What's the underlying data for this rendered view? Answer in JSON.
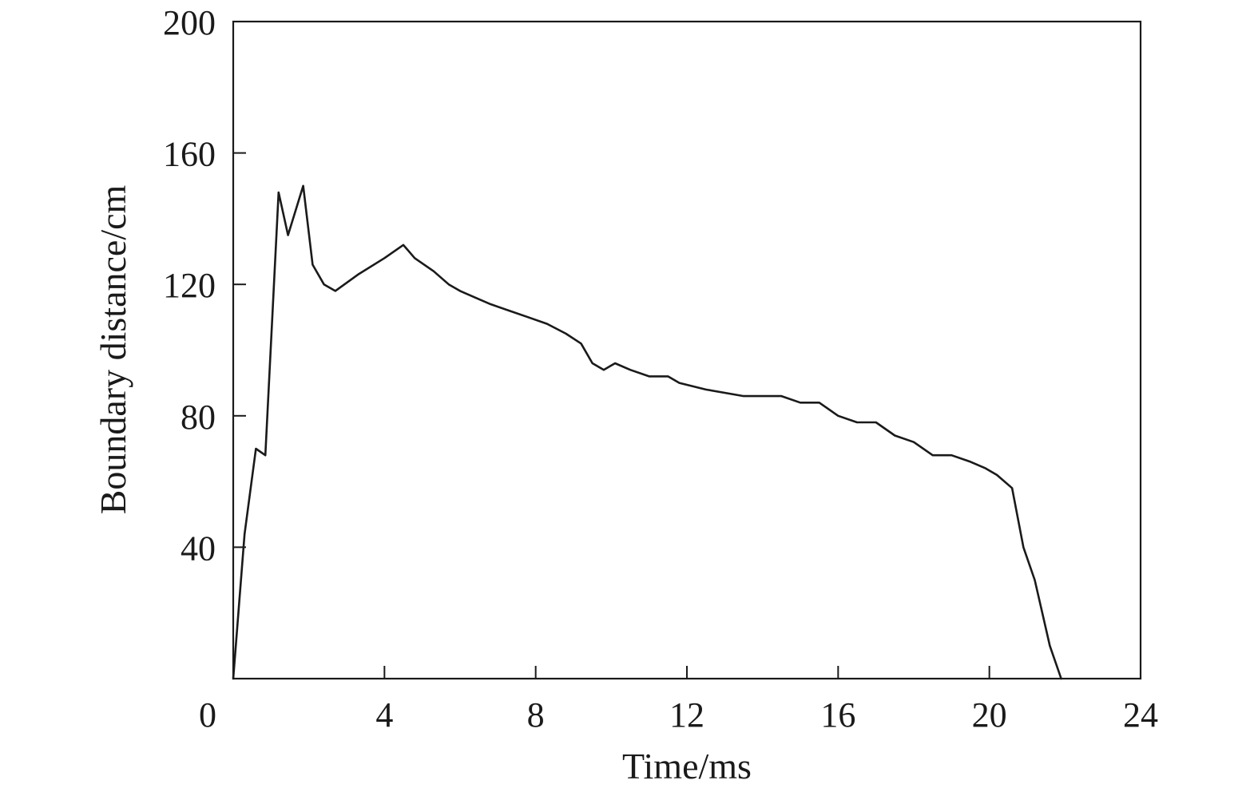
{
  "chart_data": {
    "type": "line",
    "title": "",
    "xlabel": "Time/ms",
    "ylabel": "Boundary distance/cm",
    "xlim": [
      0,
      24
    ],
    "ylim": [
      0,
      200
    ],
    "x_ticks": [
      0,
      4,
      8,
      12,
      16,
      20,
      24
    ],
    "x_tick_labels": [
      "0",
      "4",
      "8",
      "12",
      "16",
      "20",
      "24"
    ],
    "y_ticks": [
      40,
      80,
      120,
      160,
      200
    ],
    "y_tick_labels": [
      "40",
      "80",
      "120",
      "160",
      "200"
    ],
    "grid": false,
    "legend": "none",
    "line_color": "#1a1a1a",
    "series": [
      {
        "x": [
          0,
          0.3,
          0.6,
          0.85,
          1.2,
          1.45,
          1.85,
          2.1,
          2.4,
          2.7,
          3.3,
          4.0,
          4.5,
          4.8,
          5.3,
          5.7,
          6.0,
          6.4,
          6.8,
          7.3,
          7.8,
          8.3,
          8.8,
          9.2,
          9.5,
          9.8,
          10.1,
          10.5,
          11.0,
          11.5,
          11.8,
          12.5,
          13.5,
          14.0,
          14.5,
          15.0,
          15.5,
          16.0,
          16.5,
          17.0,
          17.5,
          18.0,
          18.5,
          19.0,
          19.5,
          19.9,
          20.2,
          20.6,
          20.9,
          21.2,
          21.6,
          21.9
        ],
        "y": [
          0,
          44,
          70,
          68,
          148,
          135,
          150,
          126,
          120,
          118,
          123,
          128,
          132,
          128,
          124,
          120,
          118,
          116,
          114,
          112,
          110,
          108,
          105,
          102,
          96,
          94,
          96,
          94,
          92,
          92,
          90,
          88,
          86,
          86,
          86,
          84,
          84,
          80,
          78,
          78,
          74,
          72,
          68,
          68,
          66,
          64,
          62,
          58,
          40,
          30,
          10,
          0
        ]
      }
    ]
  }
}
